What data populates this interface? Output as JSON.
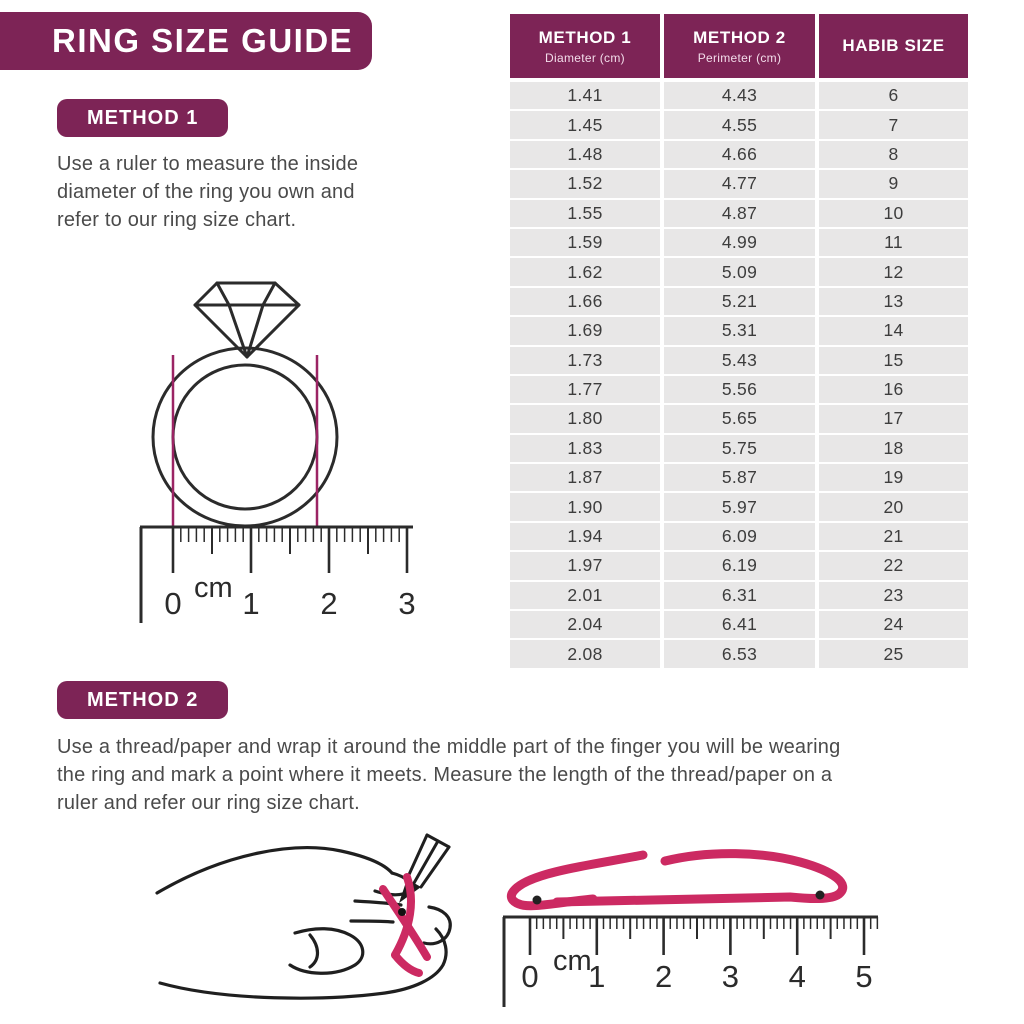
{
  "page": {
    "title": "RING SIZE GUIDE"
  },
  "method1": {
    "badge": "METHOD 1",
    "lines": [
      "Use a ruler to measure the inside",
      "diameter of the ring you own and",
      "refer to our ring size chart."
    ]
  },
  "method2": {
    "badge": "METHOD 2",
    "lines": [
      "Use a thread/paper and wrap it around the middle part of the finger you will be wearing",
      "the ring and mark a point where it meets. Measure the length of the thread/paper on a",
      "ruler and refer our ring size chart."
    ]
  },
  "table": {
    "columns": [
      {
        "title": "METHOD 1",
        "subtitle": "Diameter (cm)"
      },
      {
        "title": "METHOD 2",
        "subtitle": "Perimeter (cm)"
      },
      {
        "title": "HABIB SIZE",
        "subtitle": ""
      }
    ],
    "rows": [
      [
        "1.41",
        "4.43",
        "6"
      ],
      [
        "1.45",
        "4.55",
        "7"
      ],
      [
        "1.48",
        "4.66",
        "8"
      ],
      [
        "1.52",
        "4.77",
        "9"
      ],
      [
        "1.55",
        "4.87",
        "10"
      ],
      [
        "1.59",
        "4.99",
        "11"
      ],
      [
        "1.62",
        "5.09",
        "12"
      ],
      [
        "1.66",
        "5.21",
        "13"
      ],
      [
        "1.69",
        "5.31",
        "14"
      ],
      [
        "1.73",
        "5.43",
        "15"
      ],
      [
        "1.77",
        "5.56",
        "16"
      ],
      [
        "1.80",
        "5.65",
        "17"
      ],
      [
        "1.83",
        "5.75",
        "18"
      ],
      [
        "1.87",
        "5.87",
        "19"
      ],
      [
        "1.90",
        "5.97",
        "20"
      ],
      [
        "1.94",
        "6.09",
        "21"
      ],
      [
        "1.97",
        "6.19",
        "22"
      ],
      [
        "2.01",
        "6.31",
        "23"
      ],
      [
        "2.04",
        "6.41",
        "24"
      ],
      [
        "2.08",
        "6.53",
        "25"
      ]
    ]
  },
  "ring_ruler": {
    "unit": "cm",
    "labels": [
      "0",
      "1",
      "2",
      "3"
    ]
  },
  "thread_ruler": {
    "unit": "cm",
    "labels": [
      "0",
      "1",
      "2",
      "3",
      "4",
      "5"
    ]
  },
  "colors": {
    "primary_purple": "#7D2456",
    "thread_pink": "#CC2A62",
    "measure_line_pink": "#9B2464",
    "row_gray": "#E8E7E7",
    "text_gray": "#4A4A4A"
  }
}
